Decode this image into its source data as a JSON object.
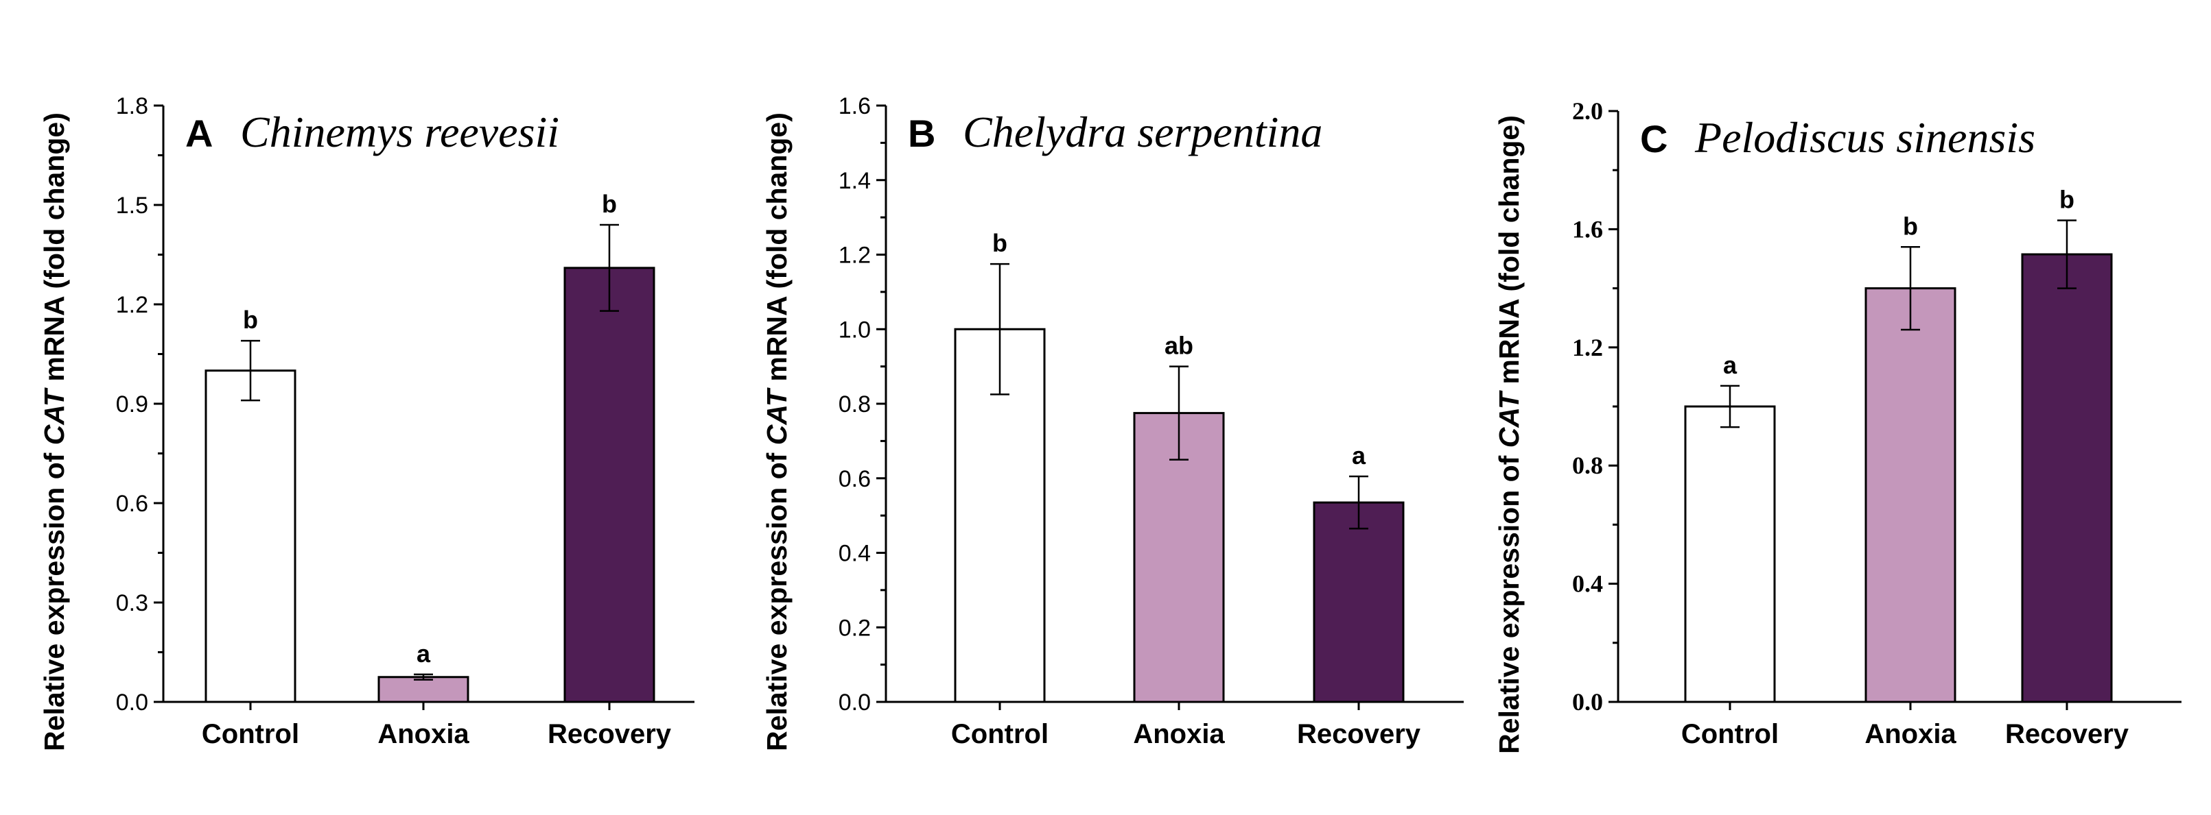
{
  "colors": {
    "control": "#ffffff",
    "anoxia": "#c497bb",
    "recovery": "#4f1e54",
    "stroke": "#000000"
  },
  "chart_data": [
    {
      "type": "bar",
      "panel": "A",
      "title": "Chinemys reevesii",
      "ylabel_pre": "Relative expression of ",
      "ylabel_gene": "CAT",
      "ylabel_post": " mRNA (fold change)",
      "categories": [
        "Control",
        "Anoxia",
        "Recovery"
      ],
      "values": [
        1.0,
        0.075,
        1.31
      ],
      "errors": [
        0.09,
        0.008,
        0.13
      ],
      "significance": [
        "b",
        "a",
        "b"
      ],
      "ylim": [
        0,
        1.8
      ],
      "yticks": [
        0,
        0.3,
        0.6,
        0.9,
        1.2,
        1.5,
        1.8
      ],
      "ytick_labels": [
        "0.0",
        "0.3",
        "0.6",
        "0.9",
        "1.2",
        "1.5",
        "1.8"
      ],
      "tick_font": "sans"
    },
    {
      "type": "bar",
      "panel": "B",
      "title": "Chelydra serpentina",
      "ylabel_pre": "Relative expression of ",
      "ylabel_gene": "CAT",
      "ylabel_post": " mRNA (fold change)",
      "categories": [
        "Control",
        "Anoxia",
        "Recovery"
      ],
      "values": [
        1.0,
        0.775,
        0.535
      ],
      "errors": [
        0.175,
        0.125,
        0.07
      ],
      "significance": [
        "b",
        "ab",
        "a"
      ],
      "ylim": [
        0,
        1.6
      ],
      "yticks": [
        0,
        0.2,
        0.4,
        0.6,
        0.8,
        1.0,
        1.2,
        1.4,
        1.6
      ],
      "ytick_labels": [
        "0.0",
        "0.2",
        "0.4",
        "0.6",
        "0.8",
        "1.0",
        "1.2",
        "1.4",
        "1.6"
      ],
      "tick_font": "sans"
    },
    {
      "type": "bar",
      "panel": "C",
      "title": "Pelodiscus sinensis",
      "ylabel_pre": "Relative expression of ",
      "ylabel_gene": "CAT",
      "ylabel_post": " mRNA (fold change)",
      "categories": [
        "Control",
        "Anoxia",
        "Recovery"
      ],
      "values": [
        1.0,
        1.4,
        1.515
      ],
      "errors": [
        0.07,
        0.14,
        0.115
      ],
      "significance": [
        "a",
        "b",
        "b"
      ],
      "ylim": [
        0,
        2.0
      ],
      "yticks": [
        0,
        0.4,
        0.8,
        1.2,
        1.6,
        2.0
      ],
      "ytick_labels": [
        "0.0",
        "0.4",
        "0.8",
        "1.2",
        "1.6",
        "2.0"
      ],
      "tick_font": "serif"
    }
  ]
}
